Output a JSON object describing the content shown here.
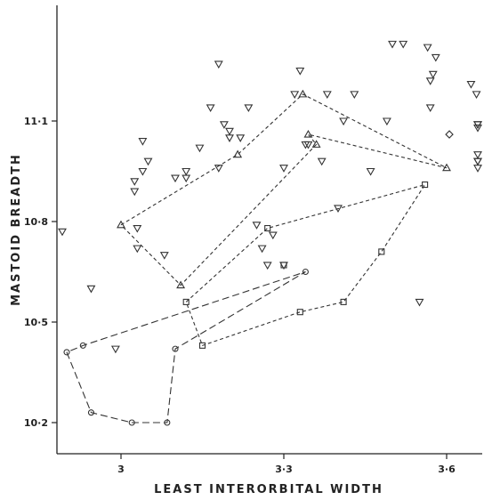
{
  "chart_data": {
    "type": "scatter",
    "title": "",
    "xlabel": "LEAST INTERORBITAL WIDTH",
    "ylabel": "MASTOID BREADTH",
    "xlim": [
      2.86,
      3.67
    ],
    "ylim": [
      10.16,
      11.37
    ],
    "x_ticks": [
      {
        "value": 3.0,
        "label": "3"
      },
      {
        "value": 3.3,
        "label": "3·3"
      },
      {
        "value": 3.6,
        "label": "3·6"
      }
    ],
    "y_ticks": [
      {
        "value": 10.2,
        "label": "10·2"
      },
      {
        "value": 10.5,
        "label": "10·5"
      },
      {
        "value": 10.8,
        "label": "10·8"
      },
      {
        "value": 11.1,
        "label": "11·1"
      }
    ],
    "grid": false,
    "legend": "none",
    "series": [
      {
        "marker": "triangle-down",
        "points": [
          [
            2.87,
            10.77
          ],
          [
            2.945,
            10.6
          ],
          [
            2.99,
            10.42
          ],
          [
            3.025,
            10.89
          ],
          [
            3.025,
            10.92
          ],
          [
            3.03,
            10.78
          ],
          [
            3.03,
            10.72
          ],
          [
            3.04,
            11.04
          ],
          [
            3.04,
            10.95
          ],
          [
            3.05,
            10.98
          ],
          [
            3.08,
            10.7
          ],
          [
            3.1,
            10.93
          ],
          [
            3.12,
            10.93
          ],
          [
            3.12,
            10.95
          ],
          [
            3.145,
            11.02
          ],
          [
            3.165,
            11.14
          ],
          [
            3.18,
            11.27
          ],
          [
            3.18,
            10.96
          ],
          [
            3.19,
            11.09
          ],
          [
            3.2,
            11.05
          ],
          [
            3.2,
            11.07
          ],
          [
            3.22,
            11.05
          ],
          [
            3.235,
            11.14
          ],
          [
            3.25,
            10.79
          ],
          [
            3.26,
            10.72
          ],
          [
            3.27,
            10.67
          ],
          [
            3.28,
            10.76
          ],
          [
            3.3,
            10.96
          ],
          [
            3.3,
            10.67
          ],
          [
            3.32,
            11.18
          ],
          [
            3.33,
            11.25
          ],
          [
            3.34,
            11.03
          ],
          [
            3.345,
            11.03
          ],
          [
            3.37,
            10.98
          ],
          [
            3.38,
            11.18
          ],
          [
            3.4,
            10.84
          ],
          [
            3.41,
            11.1
          ],
          [
            3.43,
            11.18
          ],
          [
            3.46,
            10.95
          ],
          [
            3.49,
            11.1
          ],
          [
            3.5,
            11.33
          ],
          [
            3.52,
            11.33
          ],
          [
            3.55,
            10.56
          ],
          [
            3.565,
            11.32
          ],
          [
            3.57,
            11.14
          ],
          [
            3.57,
            11.22
          ],
          [
            3.575,
            11.24
          ],
          [
            3.58,
            11.29
          ],
          [
            3.645,
            11.21
          ],
          [
            3.655,
            11.18
          ],
          [
            3.66,
            10.96
          ],
          [
            3.665,
            11.09
          ],
          [
            3.675,
            11.0
          ],
          [
            3.71,
            10.98
          ],
          [
            3.71,
            11.09
          ],
          [
            3.76,
            10.98
          ],
          [
            3.77,
            11.08
          ]
        ]
      },
      {
        "marker": "triangle-up",
        "points": [
          [
            3.0,
            10.79
          ],
          [
            3.11,
            10.61
          ],
          [
            3.215,
            11.0
          ],
          [
            3.335,
            11.18
          ],
          [
            3.345,
            11.06
          ],
          [
            3.36,
            11.03
          ],
          [
            3.6,
            10.96
          ]
        ]
      },
      {
        "marker": "square",
        "points": [
          [
            3.12,
            10.56
          ],
          [
            3.15,
            10.43
          ],
          [
            3.27,
            10.78
          ],
          [
            3.3,
            10.67
          ],
          [
            3.33,
            10.53
          ],
          [
            3.41,
            10.56
          ],
          [
            3.48,
            10.71
          ],
          [
            3.56,
            10.91
          ]
        ]
      },
      {
        "marker": "circle",
        "points": [
          [
            2.9,
            10.41
          ],
          [
            2.93,
            10.43
          ],
          [
            2.945,
            10.23
          ],
          [
            3.02,
            10.2
          ],
          [
            3.085,
            10.2
          ],
          [
            3.1,
            10.42
          ],
          [
            3.34,
            10.65
          ]
        ]
      },
      {
        "marker": "diamond",
        "points": [
          [
            3.605,
            11.06
          ]
        ]
      }
    ],
    "polygons": [
      {
        "dash": "4 3",
        "points": [
          [
            3.0,
            10.79
          ],
          [
            3.215,
            11.0
          ],
          [
            3.335,
            11.18
          ],
          [
            3.6,
            10.96
          ],
          [
            3.345,
            11.06
          ],
          [
            3.36,
            11.03
          ],
          [
            3.11,
            10.61
          ],
          [
            3.0,
            10.79
          ]
        ]
      },
      {
        "dash": "4 3",
        "points": [
          [
            3.12,
            10.56
          ],
          [
            3.27,
            10.78
          ],
          [
            3.56,
            10.91
          ],
          [
            3.48,
            10.71
          ],
          [
            3.41,
            10.56
          ],
          [
            3.33,
            10.53
          ],
          [
            3.15,
            10.43
          ],
          [
            3.12,
            10.56
          ]
        ]
      },
      {
        "dash": "8 4",
        "points": [
          [
            2.9,
            10.41
          ],
          [
            2.945,
            10.23
          ],
          [
            3.02,
            10.2
          ],
          [
            3.085,
            10.2
          ],
          [
            3.1,
            10.42
          ],
          [
            3.34,
            10.65
          ],
          [
            2.93,
            10.43
          ],
          [
            2.9,
            10.41
          ]
        ]
      }
    ]
  }
}
